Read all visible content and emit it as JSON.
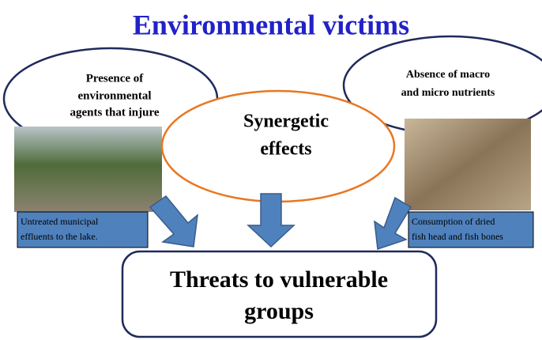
{
  "title": "Environmental victims",
  "nodes": [
    {
      "lines": [
        "Presence of",
        "environmental",
        "agents that injure"
      ]
    },
    {
      "lines": [
        "Synergetic",
        "effects"
      ]
    },
    {
      "lines": [
        "Absence of macro",
        "and micro nutrients"
      ]
    },
    {
      "lines": [
        "Threats to vulnerable",
        "groups"
      ]
    }
  ],
  "captions": [
    {
      "lines": [
        "Untreated municipal",
        "effluents to the lake."
      ]
    },
    {
      "lines": [
        "Consumption of dried",
        "fish head and fish bones"
      ]
    }
  ]
}
